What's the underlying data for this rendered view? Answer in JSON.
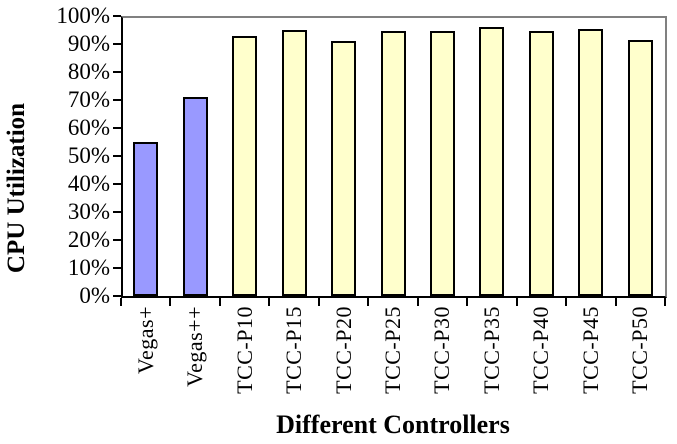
{
  "chart_data": {
    "type": "bar",
    "title": "",
    "xlabel": "Different Controllers",
    "ylabel": "CPU Utilization",
    "categories": [
      "Vegas+",
      "Vegas++",
      "TCC-P10",
      "TCC-P15",
      "TCC-P20",
      "TCC-P25",
      "TCC-P30",
      "TCC-P35",
      "TCC-P40",
      "TCC-P45",
      "TCC-P50"
    ],
    "values": [
      55,
      71,
      93,
      95,
      91,
      94.5,
      94.5,
      96,
      94.5,
      95.5,
      91.5
    ],
    "bar_colors": [
      "#9999FF",
      "#9999FF",
      "#FFFFCC",
      "#FFFFCC",
      "#FFFFCC",
      "#FFFFCC",
      "#FFFFCC",
      "#FFFFCC",
      "#FFFFCC",
      "#FFFFCC",
      "#FFFFCC"
    ],
    "ylim": [
      0,
      100
    ],
    "ytick_step": 10,
    "ytick_labels": [
      "0%",
      "10%",
      "20%",
      "30%",
      "40%",
      "50%",
      "60%",
      "70%",
      "80%",
      "90%",
      "100%"
    ],
    "legend": "none",
    "grid": "none (gray frame line at 100% top and right edge)",
    "colors": {
      "vegas_series_fill": "#9999FF",
      "tcc_series_fill": "#FFFFCC",
      "bar_border": "#000000",
      "axis": "#000000",
      "frame": "#808080",
      "background": "#FFFFFF",
      "text": "#000000"
    }
  }
}
